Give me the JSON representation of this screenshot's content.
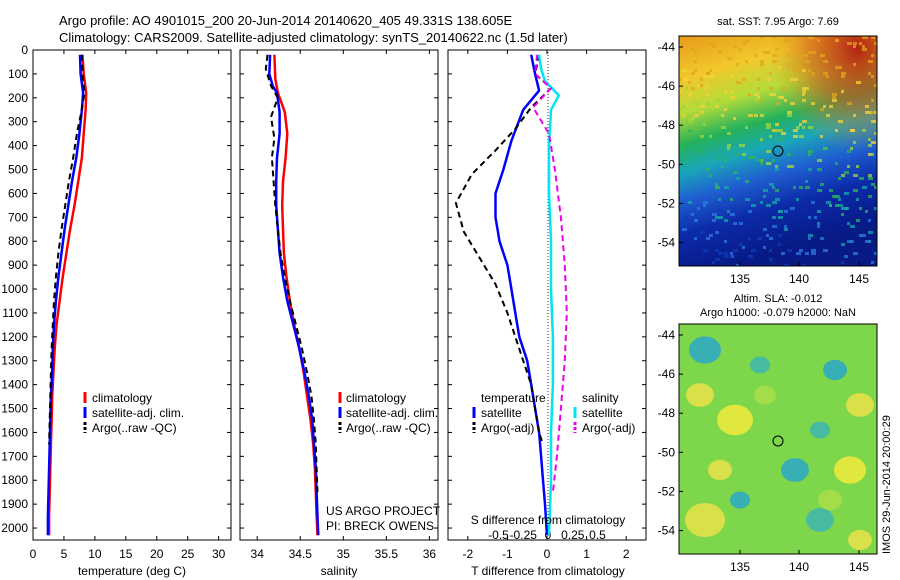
{
  "header": {
    "line1": "Argo profile: AO 4901015_200 20-Jun-2014 20140620_405 49.331S 138.605E",
    "line2": "Climatology: CARS2009. Satellite-adjusted climatology: synTS_20140622.nc (1.5d later)"
  },
  "colors": {
    "climatology": "#ff0000",
    "satellite": "#0000ff",
    "argo": "#000000",
    "s_satellite": "#00e5ee",
    "s_argo": "#ee00ee"
  },
  "chart_data": [
    {
      "id": "temperature",
      "type": "line",
      "xlabel": "temperature (deg C)",
      "xlim": [
        0,
        32
      ],
      "xticks": [
        0,
        5,
        10,
        15,
        20,
        25,
        30
      ],
      "xtick_labels": [
        "0",
        "5",
        "10",
        "15",
        "20",
        "25",
        "30"
      ],
      "ylim": [
        0,
        2050
      ],
      "yticks": [
        0,
        100,
        200,
        300,
        400,
        500,
        600,
        700,
        800,
        900,
        1000,
        1100,
        1200,
        1300,
        1400,
        1500,
        1600,
        1700,
        1800,
        1900,
        2000
      ],
      "ydir": "reverse",
      "legend": [
        "climatology",
        "satellite-adj. clim.",
        "Argo(..raw -QC)"
      ],
      "legend_position": "lower-right",
      "series": [
        {
          "name": "climatology",
          "color_key": "climatology",
          "style": "solid",
          "points": [
            [
              8.0,
              20
            ],
            [
              8.2,
              100
            ],
            [
              8.6,
              180
            ],
            [
              8.5,
              250
            ],
            [
              8.2,
              350
            ],
            [
              7.9,
              450
            ],
            [
              7.3,
              550
            ],
            [
              6.7,
              650
            ],
            [
              6.0,
              750
            ],
            [
              5.4,
              850
            ],
            [
              4.8,
              950
            ],
            [
              4.3,
              1050
            ],
            [
              3.8,
              1150
            ],
            [
              3.5,
              1250
            ],
            [
              3.3,
              1350
            ],
            [
              3.1,
              1450
            ],
            [
              3.0,
              1550
            ],
            [
              2.9,
              1650
            ],
            [
              2.8,
              1750
            ],
            [
              2.7,
              1850
            ],
            [
              2.6,
              1950
            ],
            [
              2.6,
              2030
            ]
          ]
        },
        {
          "name": "satellite-adj. clim.",
          "color_key": "satellite",
          "style": "solid",
          "points": [
            [
              7.6,
              20
            ],
            [
              7.7,
              100
            ],
            [
              8.1,
              180
            ],
            [
              7.9,
              250
            ],
            [
              7.5,
              350
            ],
            [
              7.0,
              450
            ],
            [
              6.3,
              550
            ],
            [
              5.7,
              650
            ],
            [
              5.1,
              750
            ],
            [
              4.6,
              850
            ],
            [
              4.1,
              950
            ],
            [
              3.7,
              1050
            ],
            [
              3.4,
              1150
            ],
            [
              3.2,
              1250
            ],
            [
              3.1,
              1350
            ],
            [
              2.9,
              1450
            ],
            [
              2.8,
              1550
            ],
            [
              2.7,
              1650
            ],
            [
              2.6,
              1750
            ],
            [
              2.5,
              1850
            ],
            [
              2.4,
              1950
            ],
            [
              2.4,
              2030
            ]
          ]
        },
        {
          "name": "Argo(..raw -QC)",
          "color_key": "argo",
          "style": "dashed",
          "points": [
            [
              7.9,
              20
            ],
            [
              8.0,
              100
            ],
            [
              8.3,
              180
            ],
            [
              7.8,
              260
            ],
            [
              7.1,
              350
            ],
            [
              6.5,
              450
            ],
            [
              5.8,
              550
            ],
            [
              5.2,
              650
            ],
            [
              4.6,
              750
            ],
            [
              4.1,
              850
            ],
            [
              3.7,
              950
            ],
            [
              3.4,
              1050
            ],
            [
              3.2,
              1150
            ],
            [
              3.0,
              1250
            ],
            [
              2.9,
              1350
            ],
            [
              2.8,
              1450
            ],
            [
              2.7,
              1550
            ],
            [
              2.6,
              1650
            ]
          ]
        }
      ]
    },
    {
      "id": "salinity",
      "type": "line",
      "xlabel": "salinity",
      "xlim": [
        33.8,
        36.1
      ],
      "xticks": [
        34,
        34.5,
        35,
        35.5,
        36
      ],
      "xtick_labels": [
        "34",
        "34.5",
        "35",
        "35.5",
        "36"
      ],
      "ylim": [
        0,
        2050
      ],
      "ydir": "reverse",
      "legend": [
        "climatology",
        "satellite-adj. clim.",
        "Argo(..raw -QC)"
      ],
      "legend_position": "lower-right",
      "notes": [
        "US ARGO PROJECT",
        "PI: BRECK OWENS"
      ],
      "series": [
        {
          "name": "climatology",
          "color_key": "climatology",
          "style": "solid",
          "points": [
            [
              34.2,
              20
            ],
            [
              34.21,
              120
            ],
            [
              34.24,
              180
            ],
            [
              34.32,
              260
            ],
            [
              34.35,
              350
            ],
            [
              34.33,
              450
            ],
            [
              34.3,
              550
            ],
            [
              34.29,
              650
            ],
            [
              34.3,
              750
            ],
            [
              34.31,
              850
            ],
            [
              34.34,
              950
            ],
            [
              34.38,
              1050
            ],
            [
              34.43,
              1150
            ],
            [
              34.49,
              1250
            ],
            [
              34.54,
              1350
            ],
            [
              34.58,
              1450
            ],
            [
              34.62,
              1550
            ],
            [
              34.65,
              1650
            ],
            [
              34.67,
              1750
            ],
            [
              34.68,
              1850
            ],
            [
              34.69,
              1950
            ],
            [
              34.7,
              2030
            ]
          ]
        },
        {
          "name": "satellite-adj. clim.",
          "color_key": "satellite",
          "style": "solid",
          "points": [
            [
              34.15,
              20
            ],
            [
              34.14,
              100
            ],
            [
              34.18,
              150
            ],
            [
              34.23,
              180
            ],
            [
              34.26,
              260
            ],
            [
              34.26,
              350
            ],
            [
              34.23,
              450
            ],
            [
              34.22,
              550
            ],
            [
              34.22,
              650
            ],
            [
              34.24,
              750
            ],
            [
              34.26,
              850
            ],
            [
              34.3,
              950
            ],
            [
              34.35,
              1050
            ],
            [
              34.42,
              1150
            ],
            [
              34.49,
              1250
            ],
            [
              34.55,
              1350
            ],
            [
              34.6,
              1450
            ],
            [
              34.64,
              1550
            ],
            [
              34.66,
              1650
            ],
            [
              34.68,
              1750
            ],
            [
              34.69,
              1850
            ],
            [
              34.7,
              1950
            ],
            [
              34.71,
              2030
            ]
          ]
        },
        {
          "name": "Argo(..raw -QC)",
          "color_key": "argo",
          "style": "dashed",
          "points": [
            [
              34.12,
              20
            ],
            [
              34.1,
              80
            ],
            [
              34.16,
              150
            ],
            [
              34.24,
              200
            ],
            [
              34.16,
              280
            ],
            [
              34.2,
              370
            ],
            [
              34.17,
              450
            ],
            [
              34.19,
              550
            ],
            [
              34.21,
              650
            ],
            [
              34.24,
              750
            ],
            [
              34.27,
              850
            ],
            [
              34.32,
              950
            ],
            [
              34.38,
              1050
            ],
            [
              34.45,
              1150
            ],
            [
              34.52,
              1250
            ],
            [
              34.58,
              1350
            ],
            [
              34.63,
              1450
            ],
            [
              34.66,
              1550
            ],
            [
              34.68,
              1650
            ],
            [
              34.69,
              1750
            ],
            [
              34.7,
              1850
            ]
          ]
        }
      ]
    },
    {
      "id": "difference",
      "type": "line",
      "xlabel": "T difference from climatology",
      "xlabel_top": "S difference from climatology",
      "xlim": [
        -2.5,
        2.5
      ],
      "xticks": [
        -2,
        -1,
        0,
        1,
        2
      ],
      "xtick_labels": [
        "-2",
        "-1",
        "0",
        "1",
        "2"
      ],
      "xticks_s": [
        -0.5,
        -0.25,
        0,
        0.25,
        0.5
      ],
      "xtick_labels_s": [
        "-0.5",
        "-0.25",
        "0",
        "0.25",
        "0.5"
      ],
      "ylim": [
        0,
        2050
      ],
      "ydir": "reverse",
      "legend_left_title": "temperature",
      "legend_left": [
        "satellite",
        "Argo(-adj)"
      ],
      "legend_right_title": "salinity",
      "legend_right": [
        "satellite",
        "Argo(-adj)"
      ],
      "series": [
        {
          "name": "temperature satellite",
          "color_key": "satellite",
          "style": "solid",
          "points": [
            [
              -0.4,
              20
            ],
            [
              -0.3,
              100
            ],
            [
              -0.2,
              170
            ],
            [
              -0.6,
              250
            ],
            [
              -0.9,
              380
            ],
            [
              -1.1,
              500
            ],
            [
              -1.3,
              600
            ],
            [
              -1.3,
              700
            ],
            [
              -1.2,
              800
            ],
            [
              -1.0,
              900
            ],
            [
              -0.9,
              1000
            ],
            [
              -0.8,
              1100
            ],
            [
              -0.7,
              1200
            ],
            [
              -0.5,
              1300
            ],
            [
              -0.4,
              1400
            ],
            [
              -0.3,
              1500
            ],
            [
              -0.2,
              1600
            ],
            [
              -0.15,
              1700
            ],
            [
              -0.1,
              1800
            ],
            [
              -0.05,
              1900
            ],
            [
              0,
              2030
            ]
          ]
        },
        {
          "name": "temperature Argo(-adj)",
          "color_key": "argo",
          "style": "dashed",
          "points": [
            [
              -0.2,
              20
            ],
            [
              -0.3,
              100
            ],
            [
              0.1,
              160
            ],
            [
              -0.4,
              240
            ],
            [
              -0.8,
              330
            ],
            [
              -1.3,
              420
            ],
            [
              -1.9,
              520
            ],
            [
              -2.3,
              640
            ],
            [
              -2.1,
              760
            ],
            [
              -1.7,
              870
            ],
            [
              -1.3,
              980
            ],
            [
              -1.0,
              1100
            ],
            [
              -0.8,
              1200
            ],
            [
              -0.6,
              1300
            ],
            [
              -0.4,
              1400
            ],
            [
              -0.3,
              1500
            ],
            [
              -0.2,
              1600
            ],
            [
              -0.1,
              1650
            ]
          ]
        },
        {
          "name": "salinity satellite",
          "color_key": "s_satellite",
          "style": "solid",
          "points": [
            [
              -0.2,
              20
            ],
            [
              -0.15,
              80
            ],
            [
              -0.05,
              130
            ],
            [
              0.3,
              190
            ],
            [
              0.1,
              250
            ],
            [
              0.05,
              400
            ],
            [
              0.05,
              600
            ],
            [
              0.1,
              800
            ],
            [
              0.1,
              1000
            ],
            [
              0.15,
              1200
            ],
            [
              0.15,
              1400
            ],
            [
              0.1,
              1600
            ],
            [
              0.1,
              1800
            ],
            [
              0.05,
              2030
            ]
          ]
        },
        {
          "name": "salinity Argo(-adj)",
          "color_key": "s_argo",
          "style": "dashed",
          "points": [
            [
              -0.25,
              20
            ],
            [
              -0.3,
              100
            ],
            [
              0.1,
              160
            ],
            [
              -0.35,
              240
            ],
            [
              0.05,
              350
            ],
            [
              0.2,
              500
            ],
            [
              0.35,
              700
            ],
            [
              0.45,
              900
            ],
            [
              0.5,
              1100
            ],
            [
              0.45,
              1300
            ],
            [
              0.35,
              1500
            ],
            [
              0.25,
              1700
            ],
            [
              0.15,
              1850
            ]
          ]
        }
      ]
    }
  ],
  "maps": [
    {
      "id": "sst-map",
      "title": "sat. SST: 7.95 Argo: 7.69",
      "xticks": [
        "135",
        "140",
        "145"
      ],
      "yticks": [
        "-44",
        "-46",
        "-48",
        "-50",
        "-52",
        "-54"
      ],
      "marker": {
        "lon": 138.605,
        "lat": -49.331
      }
    },
    {
      "id": "sla-map",
      "title_line1": "Altim. SLA: -0.012",
      "title_line2": "Argo h1000: -0.079 h2000: NaN",
      "xticks": [
        "135",
        "140",
        "145"
      ],
      "yticks": [
        "-44",
        "-46",
        "-48",
        "-50",
        "-52",
        "-54"
      ],
      "side_label": "IMOS 29-Jun-2014 20:00:29",
      "marker": {
        "lon": 138.605,
        "lat": -49.331
      }
    }
  ]
}
